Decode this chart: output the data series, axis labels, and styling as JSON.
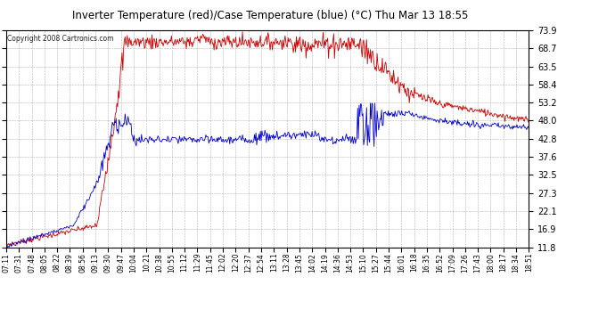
{
  "title": "Inverter Temperature (red)/Case Temperature (blue) (°C) Thu Mar 13 18:55",
  "copyright": "Copyright 2008 Cartronics.com",
  "ylim": [
    11.8,
    73.9
  ],
  "yticks": [
    11.8,
    16.9,
    22.1,
    27.3,
    32.5,
    37.6,
    42.8,
    48.0,
    53.2,
    58.4,
    63.5,
    68.7,
    73.9
  ],
  "bg_color": "#ffffff",
  "plot_bg": "#ffffff",
  "grid_color": "#aaaaaa",
  "red_color": "#cc0000",
  "blue_color": "#0000cc",
  "x_labels": [
    "07:11",
    "07:31",
    "07:48",
    "08:05",
    "08:22",
    "08:39",
    "08:56",
    "09:13",
    "09:30",
    "09:47",
    "10:04",
    "10:21",
    "10:38",
    "10:55",
    "11:12",
    "11:29",
    "11:45",
    "12:02",
    "12:20",
    "12:37",
    "12:54",
    "13:11",
    "13:28",
    "13:45",
    "14:02",
    "14:19",
    "14:36",
    "14:53",
    "15:10",
    "15:27",
    "15:44",
    "16:01",
    "16:18",
    "16:35",
    "16:52",
    "17:09",
    "17:26",
    "17:43",
    "18:00",
    "18:17",
    "18:34",
    "18:51"
  ]
}
